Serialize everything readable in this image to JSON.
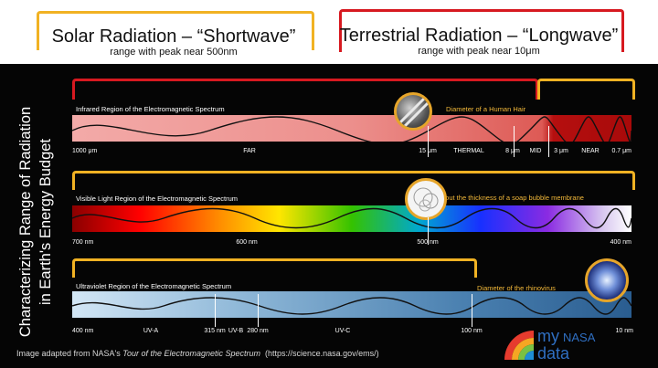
{
  "header": {
    "solar": {
      "title": "Solar Radiation – “Shortwave”",
      "subtitle": "range with peak near 500nm"
    },
    "terrestrial": {
      "title": "Terrestrial Radiation – “Longwave”",
      "subtitle": "range with peak near 10μm"
    }
  },
  "side_title": {
    "line1": "Characterizing Range of Radiation",
    "line2": "in Earth's Energy Budget"
  },
  "colors": {
    "solar_bracket": "#f1b223",
    "terrestrial_bracket": "#d71920",
    "annotation": "#f3b93a"
  },
  "infrared": {
    "label": "Infrared Region of the Electromagnetic Spectrum",
    "annotation": "Diameter of a Human Hair",
    "ticks": [
      "1000 μm",
      "FAR",
      "15 μm",
      "THERMAL",
      "8 μm",
      "MID",
      "3 μm",
      "NEAR",
      "0.7 μm"
    ]
  },
  "visible": {
    "label": "Visible Light Region of the Electromagnetic Spectrum",
    "annotation": "About the thickness of a soap bubble membrane",
    "ticks": [
      "700 nm",
      "600 nm",
      "500 nm",
      "400 nm"
    ]
  },
  "ultraviolet": {
    "label": "Ultraviolet Region of the Electromagnetic Spectrum",
    "annotation": "Diameter of the rhinovirus",
    "ticks": [
      "400 nm",
      "UV-A",
      "315 nm",
      "UV-B",
      "280 nm",
      "UV-C",
      "100 nm",
      "10 nm"
    ]
  },
  "footer": {
    "prefix": "Image adapted from NASA's ",
    "source": "Tour of the Electromagnetic Spectrum",
    "url": "(https://science.nasa.gov/ems/)"
  },
  "logo": {
    "my": "my",
    "nasa": "NASA",
    "data": "data"
  }
}
